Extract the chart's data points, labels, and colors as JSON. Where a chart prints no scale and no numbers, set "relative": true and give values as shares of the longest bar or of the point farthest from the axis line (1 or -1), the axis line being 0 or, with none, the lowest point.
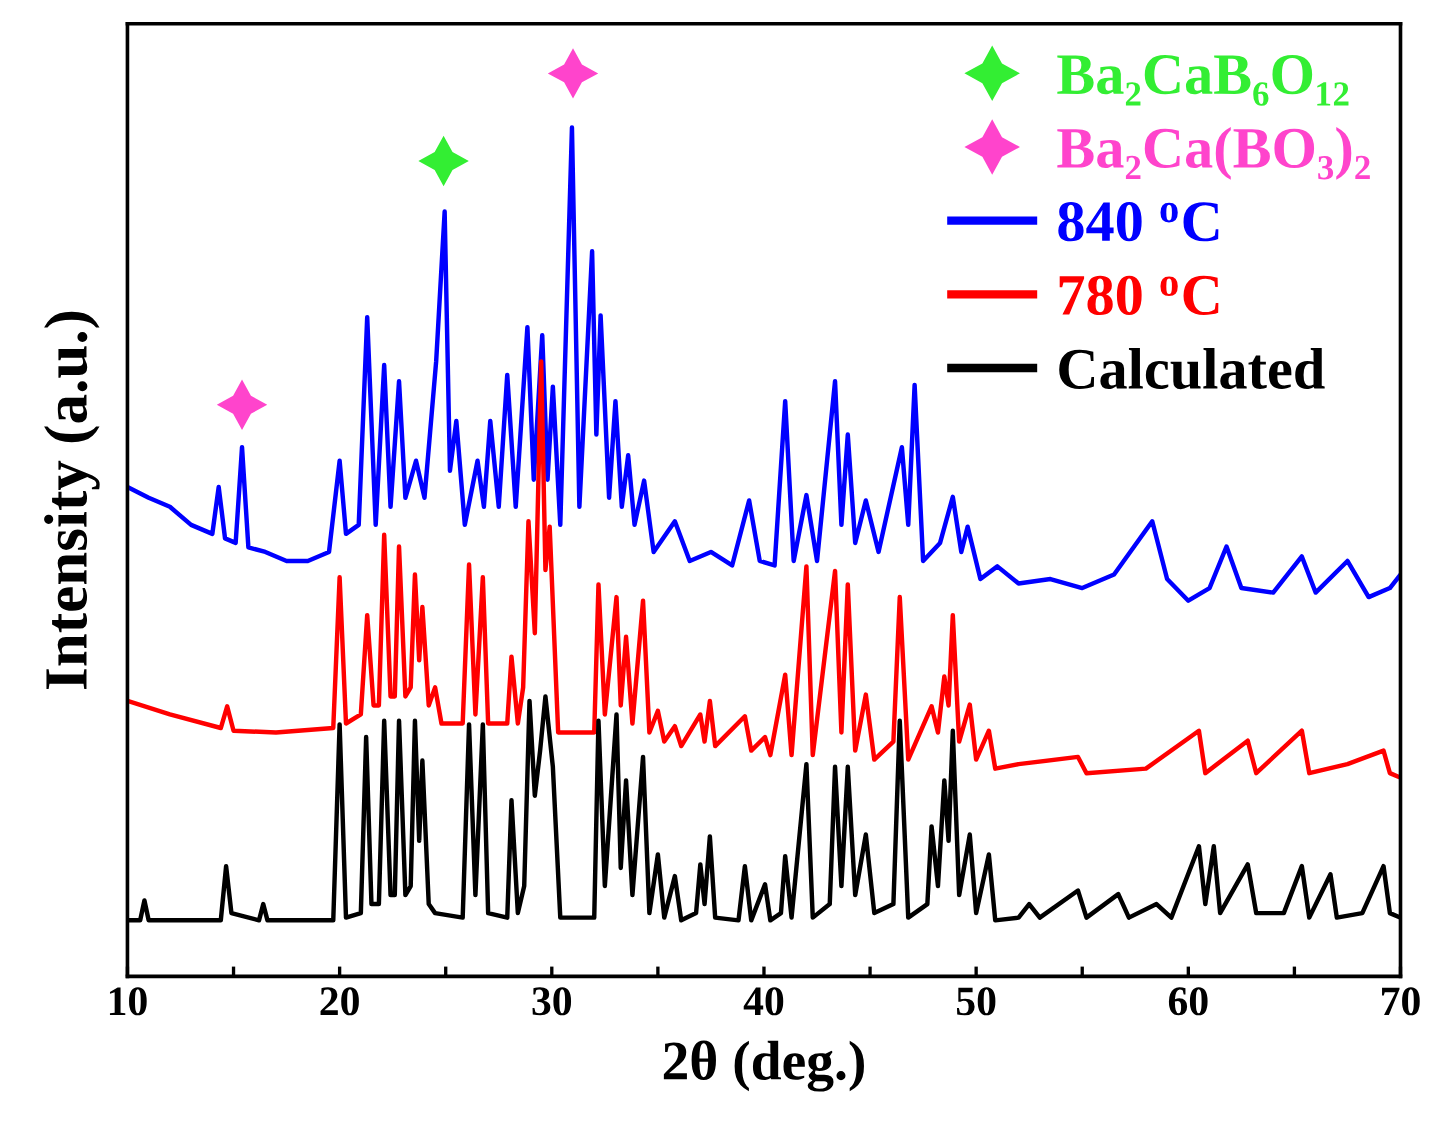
{
  "chart_data": {
    "type": "line",
    "relative": true,
    "xlabel": "2θ (deg.)",
    "ylabel": "Intensity (a.u.)",
    "xlim": [
      10,
      70
    ],
    "xticks": [
      10,
      {
        "value": 15,
        "label": null
      },
      20,
      {
        "value": 25,
        "label": null
      },
      30,
      {
        "value": 35,
        "label": null
      },
      40,
      {
        "value": 45,
        "label": null
      },
      50,
      {
        "value": 55,
        "label": null
      },
      60,
      {
        "value": 65,
        "label": null
      },
      70
    ],
    "legend": "top right",
    "tick_labels": "x",
    "line_style": "solid",
    "series": [
      {
        "name": "Ba₂CaB₆O₁₂",
        "type": "scatter",
        "marker": "star",
        "color": "#33ee33",
        "x": [
          24.9
        ],
        "values": [
          0.903
        ]
      },
      {
        "name": "Ba₂Ca(BO₃)₂",
        "type": "scatter",
        "marker": "star",
        "color": "#ff44cc",
        "x": [
          15.4,
          31.0
        ],
        "values": [
          0.633,
          1.0
        ]
      },
      {
        "name": "840 $^{o}$C",
        "color": "#0000ff",
        "x": [
          10,
          11,
          12,
          13,
          14.0,
          14.3,
          14.6,
          15.1,
          15.4,
          15.7,
          16.5,
          17.5,
          18.5,
          19.5,
          20.0,
          20.3,
          20.9,
          21.3,
          21.7,
          22.1,
          22.4,
          22.8,
          23.1,
          23.6,
          24.0,
          24.55,
          24.95,
          25.2,
          25.5,
          25.9,
          26.5,
          26.8,
          27.1,
          27.5,
          27.9,
          28.3,
          28.85,
          29.15,
          29.55,
          29.8,
          30.05,
          30.4,
          30.95,
          31.3,
          31.9,
          32.1,
          32.3,
          32.7,
          33.0,
          33.3,
          33.6,
          33.9,
          34.35,
          34.8,
          35.8,
          36.5,
          37.5,
          38.5,
          39.3,
          39.8,
          40.5,
          41.0,
          41.4,
          42.0,
          42.5,
          43.35,
          43.65,
          43.95,
          44.3,
          44.8,
          45.4,
          46.5,
          46.8,
          47.1,
          47.5,
          48.3,
          48.9,
          49.3,
          49.6,
          50.2,
          51.0,
          52.0,
          53.5,
          55.0,
          56.5,
          58.3,
          59.0,
          60.0,
          61.0,
          61.8,
          62.5,
          64.0,
          65.35,
          66.0,
          67.5,
          68.5,
          69.5,
          70
        ],
        "values": [
          0.542,
          0.53,
          0.52,
          0.5,
          0.49,
          0.542,
          0.485,
          0.48,
          0.586,
          0.475,
          0.47,
          0.46,
          0.46,
          0.47,
          0.571,
          0.49,
          0.5,
          0.73,
          0.5,
          0.677,
          0.52,
          0.659,
          0.53,
          0.571,
          0.53,
          0.681,
          0.847,
          0.56,
          0.615,
          0.5,
          0.571,
          0.52,
          0.615,
          0.52,
          0.666,
          0.52,
          0.719,
          0.55,
          0.71,
          0.55,
          0.653,
          0.5,
          0.94,
          0.52,
          0.803,
          0.6,
          0.732,
          0.53,
          0.637,
          0.52,
          0.577,
          0.5,
          0.549,
          0.47,
          0.504,
          0.46,
          0.47,
          0.455,
          0.527,
          0.46,
          0.455,
          0.637,
          0.46,
          0.533,
          0.46,
          0.659,
          0.5,
          0.6,
          0.48,
          0.527,
          0.47,
          0.586,
          0.5,
          0.655,
          0.46,
          0.48,
          0.531,
          0.47,
          0.498,
          0.44,
          0.454,
          0.435,
          0.44,
          0.43,
          0.445,
          0.504,
          0.44,
          0.416,
          0.43,
          0.476,
          0.43,
          0.425,
          0.465,
          0.425,
          0.46,
          0.42,
          0.43,
          0.445
        ]
      },
      {
        "name": "780 $^{o}$C",
        "color": "#ff0000",
        "x": [
          10,
          12,
          14.4,
          14.7,
          15.0,
          17,
          19.7,
          20.0,
          20.3,
          21.0,
          21.3,
          21.6,
          21.85,
          22.1,
          22.4,
          22.6,
          22.8,
          23.1,
          23.35,
          23.55,
          23.75,
          23.9,
          24.2,
          24.5,
          24.8,
          25.8,
          26.1,
          26.4,
          26.75,
          27.0,
          27.9,
          28.1,
          28.4,
          28.65,
          28.9,
          29.2,
          29.5,
          29.7,
          29.9,
          30.3,
          32.0,
          32.2,
          32.5,
          33.05,
          33.25,
          33.5,
          33.8,
          34.3,
          34.6,
          35.0,
          35.3,
          35.8,
          36.1,
          37.0,
          37.2,
          37.45,
          37.7,
          39.1,
          39.4,
          40.05,
          40.3,
          41.0,
          41.3,
          42.0,
          42.3,
          43.35,
          43.65,
          43.95,
          44.3,
          44.8,
          45.2,
          46.1,
          46.4,
          46.8,
          47.9,
          48.2,
          48.5,
          48.7,
          48.9,
          49.2,
          49.7,
          50.0,
          50.6,
          50.9,
          52.0,
          54.8,
          55.2,
          58.0,
          60.5,
          60.8,
          62.8,
          63.2,
          65.35,
          65.7,
          67.5,
          69.2,
          69.5,
          70
        ],
        "values": [
          0.305,
          0.29,
          0.275,
          0.299,
          0.272,
          0.27,
          0.275,
          0.442,
          0.28,
          0.29,
          0.4,
          0.3,
          0.3,
          0.489,
          0.31,
          0.31,
          0.476,
          0.31,
          0.32,
          0.445,
          0.35,
          0.409,
          0.3,
          0.32,
          0.28,
          0.28,
          0.456,
          0.29,
          0.442,
          0.28,
          0.28,
          0.354,
          0.28,
          0.32,
          0.504,
          0.38,
          0.681,
          0.45,
          0.498,
          0.27,
          0.27,
          0.434,
          0.29,
          0.42,
          0.3,
          0.376,
          0.28,
          0.416,
          0.27,
          0.294,
          0.26,
          0.277,
          0.255,
          0.29,
          0.26,
          0.305,
          0.255,
          0.288,
          0.25,
          0.265,
          0.245,
          0.334,
          0.245,
          0.454,
          0.245,
          0.449,
          0.27,
          0.434,
          0.25,
          0.312,
          0.24,
          0.26,
          0.42,
          0.24,
          0.299,
          0.27,
          0.332,
          0.3,
          0.4,
          0.26,
          0.301,
          0.24,
          0.272,
          0.23,
          0.235,
          0.243,
          0.225,
          0.23,
          0.272,
          0.225,
          0.261,
          0.225,
          0.272,
          0.225,
          0.235,
          0.25,
          0.225,
          0.22
        ]
      },
      {
        "name": "Calculated",
        "color": "#000000",
        "x": [
          10,
          10.6,
          10.8,
          11.0,
          14.4,
          14.65,
          14.9,
          16.2,
          16.4,
          16.6,
          19.7,
          20.0,
          20.3,
          21.0,
          21.25,
          21.5,
          21.85,
          22.1,
          22.4,
          22.6,
          22.8,
          23.1,
          23.35,
          23.55,
          23.75,
          23.9,
          24.2,
          24.5,
          25.8,
          26.1,
          26.4,
          26.75,
          27.0,
          27.9,
          28.1,
          28.4,
          28.7,
          28.95,
          29.2,
          29.45,
          29.7,
          30.05,
          30.4,
          32.0,
          32.2,
          32.5,
          33.05,
          33.25,
          33.5,
          33.8,
          34.3,
          34.6,
          35.0,
          35.3,
          35.8,
          36.1,
          36.8,
          37.0,
          37.2,
          37.45,
          37.7,
          38.8,
          39.1,
          39.4,
          40.05,
          40.3,
          40.8,
          41.0,
          41.3,
          42.0,
          42.3,
          43.1,
          43.35,
          43.65,
          43.95,
          44.3,
          44.8,
          45.2,
          46.1,
          46.4,
          46.8,
          47.7,
          47.9,
          48.2,
          48.5,
          48.7,
          48.9,
          49.2,
          49.7,
          50.0,
          50.6,
          50.9,
          52.0,
          52.5,
          53.0,
          54.8,
          55.2,
          56.7,
          57.2,
          58.5,
          59.2,
          60.5,
          60.8,
          61.2,
          61.5,
          62.8,
          63.2,
          64.5,
          65.35,
          65.7,
          66.7,
          67.0,
          68.2,
          69.2,
          69.5,
          70
        ],
        "values": [
          0.062,
          0.062,
          0.084,
          0.062,
          0.062,
          0.122,
          0.07,
          0.062,
          0.08,
          0.062,
          0.062,
          0.279,
          0.065,
          0.07,
          0.265,
          0.08,
          0.08,
          0.283,
          0.09,
          0.09,
          0.283,
          0.09,
          0.1,
          0.283,
          0.15,
          0.239,
          0.08,
          0.07,
          0.065,
          0.279,
          0.09,
          0.279,
          0.07,
          0.065,
          0.195,
          0.07,
          0.1,
          0.305,
          0.2,
          0.25,
          0.31,
          0.232,
          0.065,
          0.065,
          0.283,
          0.1,
          0.29,
          0.12,
          0.217,
          0.09,
          0.243,
          0.07,
          0.135,
          0.065,
          0.111,
          0.062,
          0.07,
          0.124,
          0.08,
          0.155,
          0.065,
          0.062,
          0.122,
          0.062,
          0.102,
          0.062,
          0.07,
          0.133,
          0.065,
          0.235,
          0.065,
          0.08,
          0.232,
          0.1,
          0.232,
          0.09,
          0.157,
          0.07,
          0.08,
          0.283,
          0.065,
          0.08,
          0.166,
          0.1,
          0.217,
          0.15,
          0.272,
          0.09,
          0.157,
          0.07,
          0.135,
          0.062,
          0.065,
          0.08,
          0.065,
          0.095,
          0.065,
          0.091,
          0.065,
          0.08,
          0.065,
          0.144,
          0.08,
          0.144,
          0.07,
          0.124,
          0.07,
          0.07,
          0.122,
          0.065,
          0.113,
          0.065,
          0.07,
          0.122,
          0.07,
          0.065
        ]
      }
    ]
  }
}
